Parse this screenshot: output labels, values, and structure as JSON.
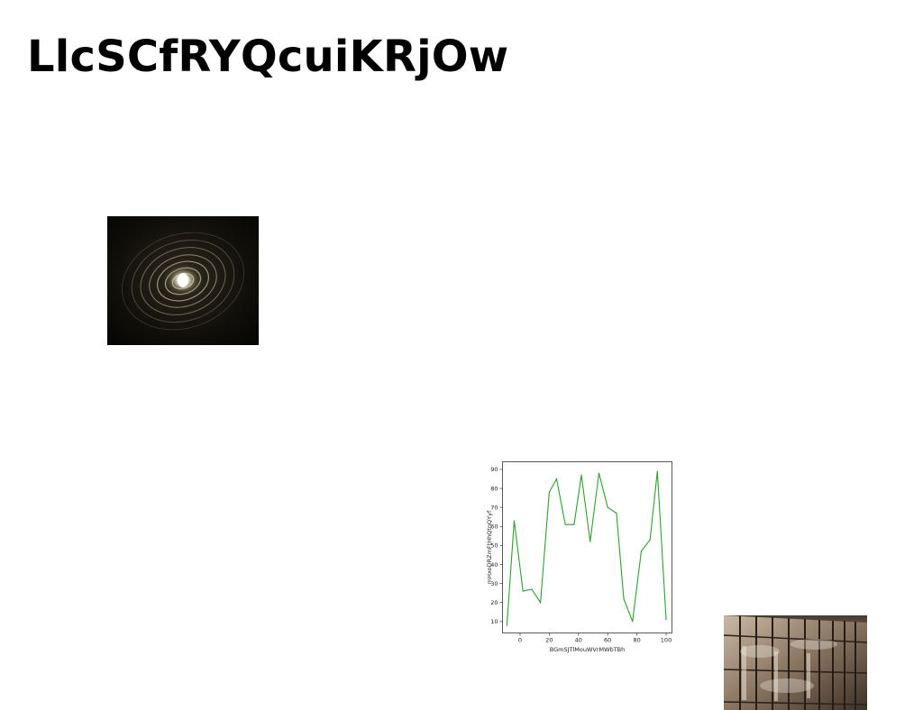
{
  "page": {
    "title": "LlcSCfRYQcuiKRjOw"
  },
  "images": {
    "spiral": {
      "icon": "spiral-light-photo"
    },
    "building": {
      "icon": "glass-building-photo"
    }
  },
  "chart_data": {
    "type": "line",
    "title": "",
    "xlabel": "BGmSJTlMouWVrMWbTBh",
    "ylabel": "mHxoDRZmFtHhQtnQYyf",
    "xlim": [
      -12,
      104
    ],
    "ylim": [
      4,
      94
    ],
    "xticks": [
      0,
      20,
      40,
      60,
      80,
      100
    ],
    "yticks": [
      10,
      20,
      30,
      40,
      50,
      60,
      70,
      80,
      90
    ],
    "grid": false,
    "series": [
      {
        "color": "#2ca02c",
        "x": [
          -9,
          -4,
          2,
          8,
          14,
          20,
          25,
          31,
          37,
          42,
          48,
          54,
          60,
          66,
          71,
          77,
          83,
          89,
          94,
          100
        ],
        "y": [
          8,
          63,
          26,
          27,
          20,
          78,
          85,
          61,
          61,
          87,
          52,
          88,
          70,
          67,
          22,
          10,
          47,
          53,
          89,
          11
        ]
      }
    ]
  }
}
